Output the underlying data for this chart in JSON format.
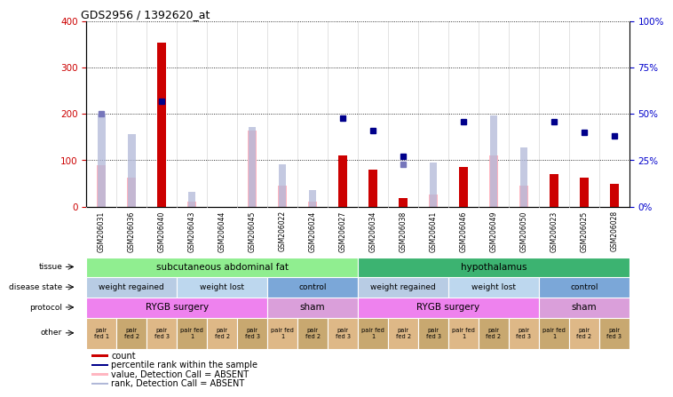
{
  "title": "GDS2956 / 1392620_at",
  "samples": [
    "GSM206031",
    "GSM206036",
    "GSM206040",
    "GSM206043",
    "GSM206044",
    "GSM206045",
    "GSM206022",
    "GSM206024",
    "GSM206027",
    "GSM206034",
    "GSM206038",
    "GSM206041",
    "GSM206046",
    "GSM206049",
    "GSM206050",
    "GSM206023",
    "GSM206025",
    "GSM206028"
  ],
  "count_present": [
    0,
    0,
    355,
    0,
    0,
    0,
    0,
    0,
    110,
    80,
    18,
    0,
    85,
    0,
    0,
    70,
    62,
    50
  ],
  "count_absent": [
    90,
    63,
    0,
    10,
    0,
    165,
    45,
    10,
    0,
    0,
    0,
    27,
    0,
    110,
    45,
    0,
    0,
    0
  ],
  "value_absent": [
    90,
    63,
    0,
    10,
    0,
    165,
    45,
    10,
    0,
    0,
    0,
    27,
    0,
    110,
    45,
    0,
    0,
    0
  ],
  "rank_absent_pct": [
    50,
    39,
    0,
    8,
    0,
    43,
    23,
    9,
    0,
    0,
    0,
    24,
    0,
    49,
    32,
    0,
    0,
    0
  ],
  "pct_present": [
    0,
    0,
    57,
    0,
    0,
    0,
    0,
    0,
    48,
    41,
    27,
    0,
    46,
    0,
    0,
    46,
    40,
    38
  ],
  "pct_absent": [
    50,
    0,
    0,
    0,
    0,
    0,
    0,
    0,
    0,
    0,
    23,
    0,
    0,
    0,
    0,
    0,
    0,
    0
  ],
  "ylim_left": [
    0,
    400
  ],
  "ylim_right": [
    0,
    100
  ],
  "yticks_left": [
    0,
    100,
    200,
    300,
    400
  ],
  "yticks_right": [
    0,
    25,
    50,
    75,
    100
  ],
  "ylabel_left_color": "#cc0000",
  "ylabel_right_color": "#0000cc",
  "tissue_groups": [
    {
      "label": "subcutaneous abdominal fat",
      "start": 0,
      "end": 9,
      "color": "#90ee90"
    },
    {
      "label": "hypothalamus",
      "start": 9,
      "end": 18,
      "color": "#3cb371"
    }
  ],
  "disease_state_groups": [
    {
      "label": "weight regained",
      "start": 0,
      "end": 3,
      "color": "#b8cce4"
    },
    {
      "label": "weight lost",
      "start": 3,
      "end": 6,
      "color": "#bdd7ee"
    },
    {
      "label": "control",
      "start": 6,
      "end": 9,
      "color": "#7ba7d8"
    },
    {
      "label": "weight regained",
      "start": 9,
      "end": 12,
      "color": "#b8cce4"
    },
    {
      "label": "weight lost",
      "start": 12,
      "end": 15,
      "color": "#bdd7ee"
    },
    {
      "label": "control",
      "start": 15,
      "end": 18,
      "color": "#7ba7d8"
    }
  ],
  "protocol_groups": [
    {
      "label": "RYGB surgery",
      "start": 0,
      "end": 6,
      "color": "#ee82ee"
    },
    {
      "label": "sham",
      "start": 6,
      "end": 9,
      "color": "#da9fda"
    },
    {
      "label": "RYGB surgery",
      "start": 9,
      "end": 15,
      "color": "#ee82ee"
    },
    {
      "label": "sham",
      "start": 15,
      "end": 18,
      "color": "#da9fda"
    }
  ],
  "other_labels": [
    "pair\nfed 1",
    "pair\nfed 2",
    "pair\nfed 3",
    "pair fed\n1",
    "pair\nfed 2",
    "pair\nfed 3",
    "pair fed\n1",
    "pair\nfed 2",
    "pair\nfed 3",
    "pair fed\n1",
    "pair\nfed 2",
    "pair\nfed 3",
    "pair fed\n1",
    "pair\nfed 2",
    "pair\nfed 3",
    "pair fed\n1",
    "pair\nfed 2",
    "pair\nfed 3"
  ],
  "other_colors_alt": [
    "#deb887",
    "#c8a870",
    "#deb887",
    "#c8a870",
    "#deb887",
    "#c8a870",
    "#deb887",
    "#c8a870",
    "#deb887",
    "#c8a870",
    "#deb887",
    "#c8a870",
    "#deb887",
    "#c8a870",
    "#deb887",
    "#c8a870",
    "#deb887",
    "#c8a870"
  ],
  "count_color": "#cc0000",
  "count_absent_color": "#ffb6c1",
  "rank_absent_color": "#b0b8d8",
  "blue_sq_color": "#00008b",
  "blue_sq_absent_color": "#7777bb",
  "bg_color": "#ffffff",
  "legend_items": [
    {
      "color": "#cc0000",
      "label": "count"
    },
    {
      "color": "#00008b",
      "label": "percentile rank within the sample"
    },
    {
      "color": "#ffb6c1",
      "label": "value, Detection Call = ABSENT"
    },
    {
      "color": "#b0b8d8",
      "label": "rank, Detection Call = ABSENT"
    }
  ]
}
